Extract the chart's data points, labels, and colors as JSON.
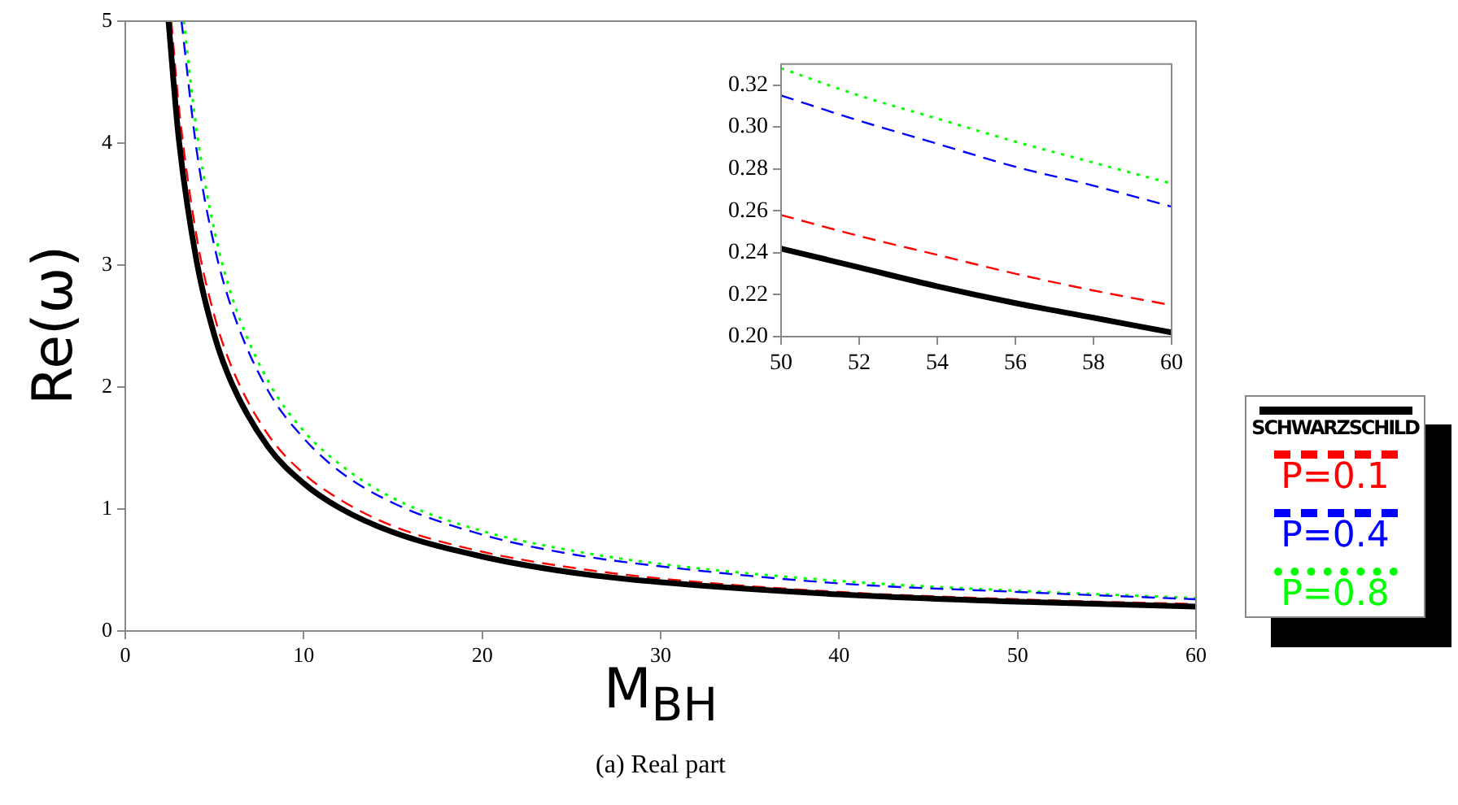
{
  "chart_data": [
    {
      "type": "line",
      "xlabel": "M$_{BH}$",
      "ylabel": "Re(ω)",
      "xlim": [
        0,
        60
      ],
      "ylim": [
        0,
        5
      ],
      "xticks": [
        0,
        10,
        20,
        30,
        40,
        50,
        60
      ],
      "yticks": [
        0,
        1,
        2,
        3,
        4,
        5
      ],
      "legend": "right",
      "marker": "none",
      "annotations": [
        "(a) Real part"
      ],
      "series": [
        {
          "name": "SCHWARZSCHILD",
          "color": "#000000",
          "line_style": "solid",
          "x": [
            2.42,
            3,
            4,
            5,
            6,
            8,
            10,
            12,
            15,
            20,
            25,
            30,
            40,
            50,
            60
          ],
          "values": [
            5.0,
            4.03,
            3.03,
            2.42,
            2.02,
            1.51,
            1.21,
            1.01,
            0.81,
            0.61,
            0.48,
            0.4,
            0.3,
            0.24,
            0.2
          ]
        },
        {
          "name": "P=0.1",
          "color": "#ff0000",
          "line_style": "dashed",
          "x": [
            2.58,
            3,
            4,
            5,
            6,
            8,
            10,
            12,
            15,
            20,
            25,
            30,
            40,
            50,
            60
          ],
          "values": [
            5.0,
            4.3,
            3.23,
            2.58,
            2.15,
            1.61,
            1.29,
            1.08,
            0.86,
            0.65,
            0.52,
            0.43,
            0.32,
            0.26,
            0.22
          ]
        },
        {
          "name": "P=0.4",
          "color": "#0000ff",
          "line_style": "dashed",
          "x": [
            3.15,
            4,
            5,
            6,
            8,
            10,
            12,
            15,
            20,
            25,
            30,
            40,
            50,
            60
          ],
          "values": [
            5.0,
            3.94,
            3.15,
            2.63,
            1.97,
            1.58,
            1.31,
            1.05,
            0.79,
            0.63,
            0.53,
            0.39,
            0.32,
            0.26
          ]
        },
        {
          "name": "P=0.8",
          "color": "#00ff00",
          "line_style": "dotted",
          "x": [
            3.28,
            4,
            5,
            6,
            8,
            10,
            12,
            15,
            20,
            25,
            30,
            40,
            50,
            60
          ],
          "values": [
            5.0,
            4.1,
            3.28,
            2.73,
            2.05,
            1.64,
            1.37,
            1.09,
            0.82,
            0.66,
            0.55,
            0.41,
            0.33,
            0.27
          ]
        }
      ]
    },
    {
      "type": "line",
      "xlim": [
        50,
        60
      ],
      "ylim": [
        0.2,
        0.33
      ],
      "xticks": [
        50,
        52,
        54,
        56,
        58,
        60
      ],
      "yticks": [
        {
          "value": 0.2,
          "label": "0.20"
        },
        0.22,
        0.24,
        0.26,
        0.28,
        {
          "value": 0.3,
          "label": "0.30"
        },
        0.32
      ],
      "marker": "none",
      "series": [
        {
          "color": "#000000",
          "line_style": "solid",
          "x": [
            50,
            52,
            54,
            56,
            58,
            60
          ],
          "values": [
            0.242,
            0.233,
            0.224,
            0.216,
            0.209,
            0.202
          ]
        },
        {
          "color": "#ff0000",
          "line_style": "dashed",
          "x": [
            50,
            52,
            54,
            56,
            58,
            60
          ],
          "values": [
            0.258,
            0.248,
            0.239,
            0.23,
            0.222,
            0.215
          ]
        },
        {
          "color": "#0000ff",
          "line_style": "dashed",
          "x": [
            50,
            52,
            54,
            56,
            58,
            60
          ],
          "values": [
            0.315,
            0.303,
            0.292,
            0.281,
            0.272,
            0.262
          ]
        },
        {
          "color": "#00ff00",
          "line_style": "dotted",
          "x": [
            50,
            52,
            54,
            56,
            58,
            60
          ],
          "values": [
            0.328,
            0.315,
            0.304,
            0.293,
            0.283,
            0.273
          ]
        }
      ]
    }
  ]
}
